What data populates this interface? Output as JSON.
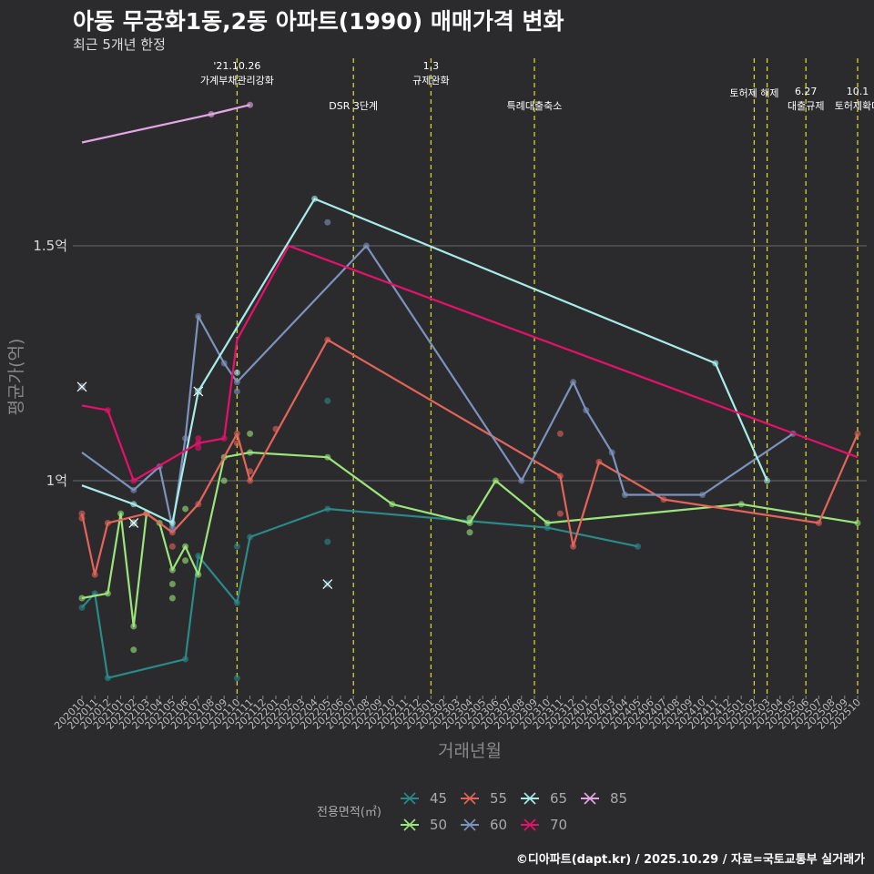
{
  "header": {
    "title": "아동 무궁화1동,2동 아파트(1990) 매매가격 변화",
    "subtitle": "최근 5개년 한정"
  },
  "caption": "©디아파트(dapt.kr) / 2025.10.29 / 자료=국토교통부 실거래가",
  "chart_data": {
    "type": "line",
    "title": "아동 무궁화1동,2동 아파트(1990) 매매가격 변화",
    "subtitle": "최근 5개년 한정",
    "xlabel": "거래년월",
    "ylabel": "평균가(억)",
    "ylim": [
      0.53,
      1.79
    ],
    "yticks": [
      {
        "value": 1.0,
        "label": "1억"
      },
      {
        "value": 1.5,
        "label": "1.5억"
      }
    ],
    "categories": [
      "202010",
      "202011",
      "202012",
      "202101",
      "202102",
      "202103",
      "202104",
      "202105",
      "202106",
      "202107",
      "202108",
      "202109",
      "202110",
      "202111",
      "202112",
      "202201",
      "202202",
      "202203",
      "202204",
      "202205",
      "202206",
      "202207",
      "202208",
      "202209",
      "202210",
      "202211",
      "202212",
      "202301",
      "202302",
      "202303",
      "202304",
      "202305",
      "202306",
      "202307",
      "202308",
      "202309",
      "202310",
      "202311",
      "202312",
      "202401",
      "202402",
      "202403",
      "202404",
      "202405",
      "202406",
      "202407",
      "202408",
      "202409",
      "202410",
      "202411",
      "202412",
      "202501",
      "202502",
      "202503",
      "202504",
      "202505",
      "202506",
      "202507",
      "202508",
      "202509",
      "202510"
    ],
    "events": [
      {
        "x": 12.0,
        "lines": [
          "'21.10.26",
          "가계부채관리강화"
        ],
        "level": 0
      },
      {
        "x": 21.0,
        "lines": [
          "DSR 3단계"
        ],
        "level": 1
      },
      {
        "x": 27.0,
        "lines": [
          "1.3",
          "규제완화"
        ],
        "level": 0
      },
      {
        "x": 35.0,
        "lines": [
          "특례대출축소"
        ],
        "level": 1
      },
      {
        "x": 52.0,
        "lines": [
          "토허제 해제"
        ],
        "level": 0.5
      },
      {
        "x": 53.0,
        "lines": [
          ""
        ],
        "level": 0
      },
      {
        "x": 56.0,
        "lines": [
          "6.27",
          "대출규제"
        ],
        "level": 1
      },
      {
        "x": 60.0,
        "lines": [
          "10.1",
          "토허제확대"
        ],
        "level": 1
      }
    ],
    "legend_title": "전용면적(㎡)",
    "series": [
      {
        "name": "45",
        "color": "#2a8a8a",
        "line": [
          [
            0,
            0.73
          ],
          [
            1,
            0.76
          ],
          [
            2,
            0.58
          ],
          [
            8,
            0.62
          ],
          [
            9,
            0.84
          ],
          [
            12,
            0.74
          ],
          [
            13,
            0.88
          ],
          [
            19,
            0.94
          ],
          [
            36,
            0.9
          ],
          [
            43,
            0.86
          ]
        ],
        "points": [
          [
            0,
            0.73
          ],
          [
            1,
            0.76
          ],
          [
            2,
            0.58
          ],
          [
            8,
            0.62
          ],
          [
            9,
            0.84
          ],
          [
            12,
            0.74
          ],
          [
            13,
            0.88
          ],
          [
            19,
            0.94
          ],
          [
            36,
            0.9
          ],
          [
            43,
            0.86
          ],
          [
            12,
            0.58
          ],
          [
            12,
            0.86
          ],
          [
            19,
            0.87
          ],
          [
            19,
            1.17
          ]
        ],
        "crosses": [
          [
            19,
            0.78
          ]
        ]
      },
      {
        "name": "50",
        "color": "#9be67a",
        "line": [
          [
            0,
            0.75
          ],
          [
            2,
            0.76
          ],
          [
            3,
            0.93
          ],
          [
            4,
            0.69
          ],
          [
            5,
            0.93
          ],
          [
            6,
            0.91
          ],
          [
            7,
            0.81
          ],
          [
            8,
            0.86
          ],
          [
            9,
            0.8
          ],
          [
            11,
            1.05
          ],
          [
            13,
            1.06
          ],
          [
            19,
            1.05
          ],
          [
            24,
            0.95
          ],
          [
            30,
            0.91
          ],
          [
            32,
            1.0
          ],
          [
            36,
            0.91
          ],
          [
            51,
            0.95
          ],
          [
            60,
            0.91
          ]
        ],
        "points": [
          [
            0,
            0.75
          ],
          [
            2,
            0.76
          ],
          [
            3,
            0.93
          ],
          [
            4,
            0.69
          ],
          [
            5,
            0.93
          ],
          [
            6,
            0.91
          ],
          [
            7,
            0.81
          ],
          [
            8,
            0.86
          ],
          [
            9,
            0.8
          ],
          [
            11,
            1.05
          ],
          [
            13,
            1.06
          ],
          [
            19,
            1.05
          ],
          [
            24,
            0.95
          ],
          [
            30,
            0.91
          ],
          [
            32,
            1.0
          ],
          [
            36,
            0.91
          ],
          [
            51,
            0.95
          ],
          [
            60,
            0.91
          ],
          [
            4,
            0.64
          ],
          [
            7,
            0.78
          ],
          [
            7,
            0.75
          ],
          [
            8,
            0.94
          ],
          [
            8,
            0.83
          ],
          [
            11,
            1.0
          ],
          [
            13,
            1.1
          ],
          [
            30,
            0.92
          ],
          [
            30,
            0.89
          ]
        ],
        "crosses": []
      },
      {
        "name": "55",
        "color": "#e5645a",
        "line": [
          [
            0,
            0.93
          ],
          [
            1,
            0.8
          ],
          [
            2,
            0.91
          ],
          [
            5,
            0.93
          ],
          [
            7,
            0.89
          ],
          [
            9,
            0.95
          ],
          [
            12,
            1.1
          ],
          [
            13,
            1.0
          ],
          [
            19,
            1.3
          ],
          [
            37,
            1.01
          ],
          [
            38,
            0.86
          ],
          [
            40,
            1.04
          ],
          [
            45,
            0.96
          ],
          [
            57,
            0.91
          ],
          [
            60,
            1.1
          ]
        ],
        "points": [
          [
            0,
            0.93
          ],
          [
            1,
            0.8
          ],
          [
            2,
            0.91
          ],
          [
            5,
            0.93
          ],
          [
            7,
            0.89
          ],
          [
            9,
            0.95
          ],
          [
            12,
            1.1
          ],
          [
            13,
            1.0
          ],
          [
            19,
            1.3
          ],
          [
            37,
            1.01
          ],
          [
            38,
            0.86
          ],
          [
            40,
            1.04
          ],
          [
            45,
            0.96
          ],
          [
            57,
            0.91
          ],
          [
            60,
            1.1
          ],
          [
            0,
            0.92
          ],
          [
            7,
            0.86
          ],
          [
            12,
            1.08
          ],
          [
            13,
            1.02
          ],
          [
            15,
            1.11
          ],
          [
            37,
            1.1
          ],
          [
            37,
            0.93
          ]
        ],
        "crosses": []
      },
      {
        "name": "60",
        "color": "#7b93bd",
        "line": [
          [
            0,
            1.06
          ],
          [
            4,
            0.98
          ],
          [
            6,
            1.03
          ],
          [
            7,
            0.9
          ],
          [
            8,
            1.09
          ],
          [
            9,
            1.35
          ],
          [
            11,
            1.25
          ],
          [
            12,
            1.21
          ],
          [
            22,
            1.5
          ],
          [
            34,
            1.0
          ],
          [
            38,
            1.21
          ],
          [
            39,
            1.15
          ],
          [
            41,
            1.06
          ],
          [
            42,
            0.97
          ],
          [
            48,
            0.97
          ],
          [
            55,
            1.1
          ]
        ],
        "points": [
          [
            4,
            0.98
          ],
          [
            6,
            1.03
          ],
          [
            7,
            0.9
          ],
          [
            8,
            1.09
          ],
          [
            9,
            1.35
          ],
          [
            11,
            1.25
          ],
          [
            12,
            1.21
          ],
          [
            22,
            1.5
          ],
          [
            34,
            1.0
          ],
          [
            38,
            1.21
          ],
          [
            39,
            1.15
          ],
          [
            41,
            1.06
          ],
          [
            42,
            0.97
          ],
          [
            48,
            0.97
          ],
          [
            55,
            1.1
          ],
          [
            12,
            1.19
          ],
          [
            19,
            1.55
          ]
        ],
        "crosses": [
          [
            0,
            1.2
          ]
        ]
      },
      {
        "name": "65",
        "color": "#a8ece8",
        "line": [
          [
            0,
            0.99
          ],
          [
            4,
            0.95
          ],
          [
            7,
            0.91
          ],
          [
            9,
            1.19
          ],
          [
            18,
            1.6
          ],
          [
            49,
            1.25
          ],
          [
            53,
            1.0
          ]
        ],
        "points": [
          [
            4,
            0.95
          ],
          [
            7,
            0.91
          ],
          [
            18,
            1.6
          ],
          [
            49,
            1.25
          ],
          [
            53,
            1.0
          ],
          [
            12,
            1.23
          ]
        ],
        "crosses": [
          [
            4,
            0.91
          ],
          [
            9,
            1.19
          ]
        ]
      },
      {
        "name": "70",
        "color": "#e8106a",
        "line": [
          [
            0,
            1.16
          ],
          [
            2,
            1.15
          ],
          [
            4,
            1.0
          ],
          [
            9,
            1.08
          ],
          [
            11,
            1.09
          ],
          [
            12,
            1.3
          ],
          [
            16,
            1.5
          ],
          [
            60,
            1.05
          ]
        ],
        "points": [
          [
            2,
            1.15
          ],
          [
            4,
            1.0
          ],
          [
            9,
            1.08
          ],
          [
            11,
            1.09
          ],
          [
            9,
            1.09
          ],
          [
            9,
            1.07
          ]
        ],
        "crosses": []
      },
      {
        "name": "85",
        "color": "#e4a6e6",
        "line": [
          [
            0,
            1.72
          ],
          [
            10,
            1.78
          ],
          [
            13,
            1.8
          ]
        ],
        "points": [
          [
            10,
            1.78
          ],
          [
            13,
            1.8
          ]
        ],
        "crosses": []
      }
    ]
  }
}
